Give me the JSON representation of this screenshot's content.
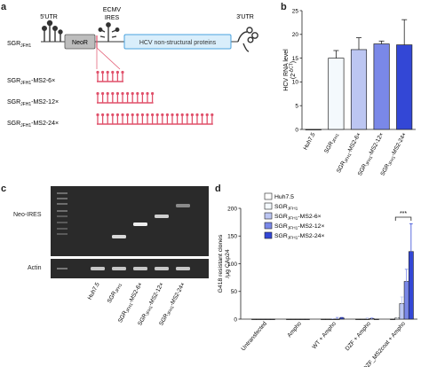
{
  "panel_a": {
    "label": "a",
    "utr5": "5'UTR",
    "utr3": "3'UTR",
    "ecmv": "ECMV",
    "ires": "IRES",
    "neor": "NeoR",
    "hcv": "HCV non-structural proteins",
    "constructs": [
      {
        "base": "SGR",
        "sub": "JFH1",
        "suffix": "",
        "repeats": 0
      },
      {
        "base": "SGR",
        "sub": "JFH1",
        "suffix": "-MS2-6×",
        "repeats": 6
      },
      {
        "base": "SGR",
        "sub": "JFH1",
        "suffix": "-MS2-12×",
        "repeats": 12
      },
      {
        "base": "SGR",
        "sub": "JFH1",
        "suffix": "-MS2-24×",
        "repeats": 24
      }
    ],
    "colors": {
      "ms2": "#e0506a",
      "hcv_fill": "#d9eefb",
      "hcv_stroke": "#4aa3df",
      "neor_fill": "#bdbdbd"
    }
  },
  "panel_b": {
    "label": "b",
    "chart_data": {
      "type": "bar",
      "ylabel_main": "HCV RNA level",
      "ylabel_unit": "(2",
      "ylabel_exp": "-ΔCT",
      "ylabel_close": ")",
      "ylim": [
        0,
        25
      ],
      "yticks": [
        "0",
        "5",
        "10",
        "15",
        "20",
        "25"
      ],
      "categories": [
        {
          "base": "Huh7.5",
          "sub": "",
          "suffix": ""
        },
        {
          "base": "SGR",
          "sub": "JFH1",
          "suffix": ""
        },
        {
          "base": "SGR",
          "sub": "JFH1",
          "suffix": "-MS2-6×"
        },
        {
          "base": "SGR",
          "sub": "JFH1",
          "suffix": "-MS2-12×"
        },
        {
          "base": "SGR",
          "sub": "JFH1",
          "suffix": "-MS2-24×"
        }
      ],
      "values": [
        0,
        15,
        16.8,
        18,
        17.8
      ],
      "errors": [
        0,
        1.6,
        2.5,
        0.6,
        5.3
      ],
      "colors": [
        "#ffffff",
        "#f4f9fd",
        "#bcc6f2",
        "#7a88e8",
        "#3347d6"
      ]
    }
  },
  "panel_c": {
    "label": "c",
    "neo_ires": "Neo-IRES",
    "actin": "Actin",
    "lanes": [
      {
        "base": "Huh7.5",
        "sub": "",
        "suffix": ""
      },
      {
        "base": "SGR",
        "sub": "JFH1",
        "suffix": ""
      },
      {
        "base": "SGR",
        "sub": "JFH1",
        "suffix": "-MS2-6×"
      },
      {
        "base": "SGR",
        "sub": "JFH1",
        "suffix": "-MS2-12×"
      },
      {
        "base": "SGR",
        "sub": "JFH1",
        "suffix": "-MS2-24×"
      }
    ]
  },
  "panel_d": {
    "label": "d",
    "chart_data": {
      "type": "bar",
      "ylabel_1": "G418 resistant clones",
      "ylabel_2": "/μg CAp24",
      "ylim": [
        0,
        200
      ],
      "yticks": [
        "0",
        "50",
        "100",
        "150",
        "200"
      ],
      "significance": "***",
      "groups": [
        "Untransfected",
        "Ampho",
        "WT + Ampho",
        "DZF + Ampho",
        "DZF_MS2coat + Ampho"
      ],
      "series": [
        {
          "base": "Huh7.5",
          "sub": "",
          "suffix": "",
          "color": "#ffffff",
          "values": [
            0,
            0,
            0,
            0,
            0
          ],
          "errors": [
            0,
            0,
            0,
            0,
            0
          ]
        },
        {
          "base": "SGR",
          "sub": "JFH1",
          "suffix": "",
          "color": "#f4f9fd",
          "values": [
            0,
            0,
            0,
            0,
            2
          ],
          "errors": [
            0,
            0,
            0,
            0,
            1
          ]
        },
        {
          "base": "SGR",
          "sub": "JFH1",
          "suffix": "-MS2-6×",
          "color": "#bcc6f2",
          "values": [
            0,
            0,
            0,
            0,
            28
          ],
          "errors": [
            0,
            0,
            1,
            2,
            12
          ]
        },
        {
          "base": "SGR",
          "sub": "JFH1",
          "suffix": "-MS2-12×",
          "color": "#7a88e8",
          "values": [
            0,
            0,
            0,
            1,
            68
          ],
          "errors": [
            0,
            0,
            3,
            1,
            22
          ]
        },
        {
          "base": "SGR",
          "sub": "JFH1",
          "suffix": "-MS2-24×",
          "color": "#3347d6",
          "values": [
            0,
            0,
            2,
            0,
            122
          ],
          "errors": [
            0,
            0,
            1,
            0,
            50
          ]
        }
      ]
    }
  }
}
